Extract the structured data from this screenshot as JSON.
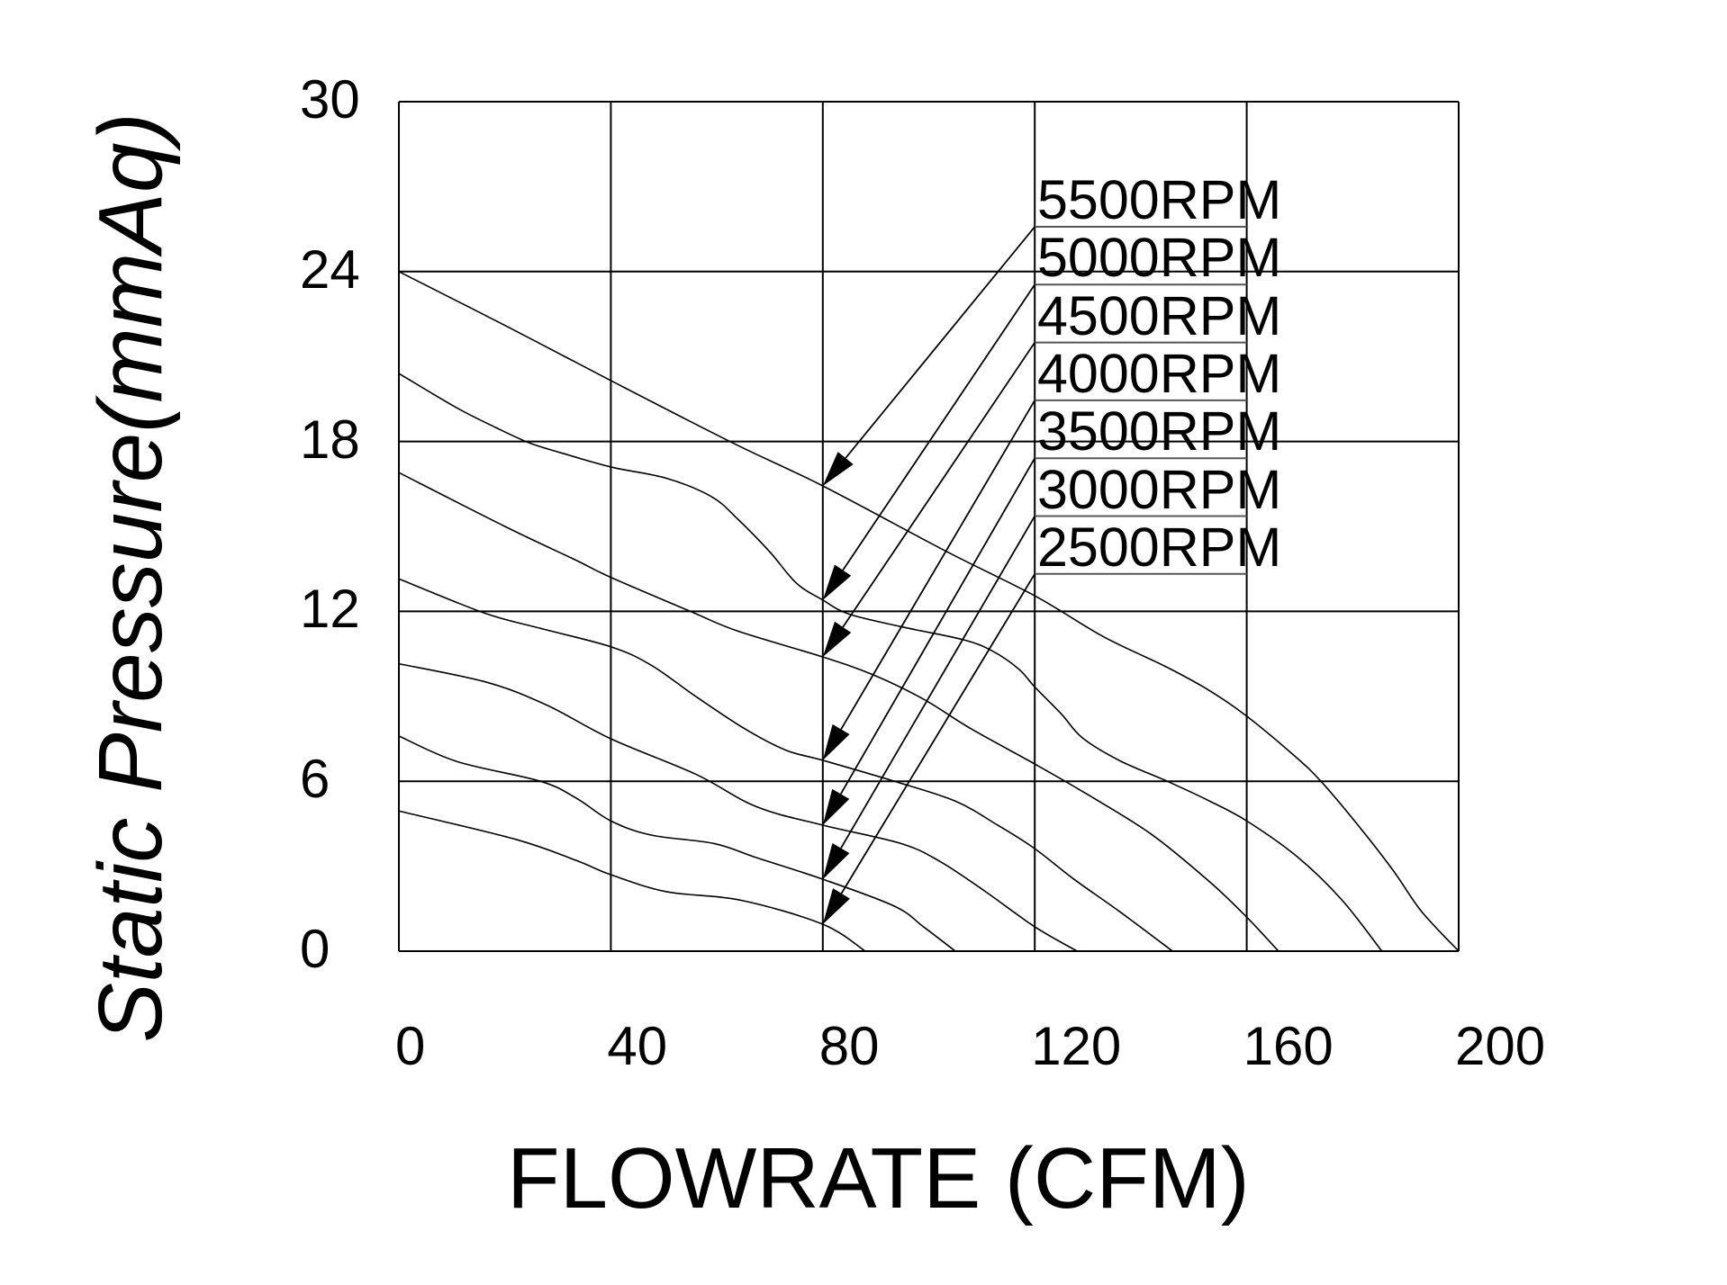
{
  "chart_data": {
    "type": "line",
    "title": "",
    "xlabel": "FLOWRATE (CFM)",
    "ylabel": "Static  Pressure(mmAq)",
    "xlim": [
      0,
      200
    ],
    "ylim": [
      0,
      30
    ],
    "xticks": [
      0,
      40,
      80,
      120,
      160,
      200
    ],
    "yticks": [
      0,
      6,
      12,
      18,
      24,
      30
    ],
    "xtick_labels": [
      "0",
      "40",
      "80",
      "120",
      "160",
      "200"
    ],
    "ytick_labels": [
      "0",
      "6",
      "12",
      "18",
      "24",
      "30"
    ],
    "grid": true,
    "legend_position": "upper-right inside plot, labels with leader arrows pointing to curves at 80 CFM",
    "series": [
      {
        "name": "5500RPM",
        "x": [
          0,
          20,
          40,
          63,
          80,
          103.5,
          120,
          133,
          144.5,
          153,
          160,
          169,
          174,
          181,
          187.6,
          193,
          200
        ],
        "y": [
          24,
          22.1,
          20.15,
          17.95,
          16.43,
          14.1,
          12.55,
          11.1,
          10.07,
          9.2,
          8.3,
          6.9,
          6.0,
          4.45,
          2.86,
          1.4,
          0
        ]
      },
      {
        "name": "5000RPM",
        "x": [
          0,
          10.8,
          18.2,
          24.6,
          30.6,
          40,
          50.5,
          59,
          64,
          70,
          75,
          80,
          85,
          95,
          106.5,
          112,
          117,
          120,
          125,
          129,
          136,
          145,
          153,
          160,
          169.5,
          178,
          185.5
        ],
        "y": [
          20.4,
          19.2,
          18.5,
          17.95,
          17.6,
          17.1,
          16.7,
          16.05,
          15.25,
          14.1,
          13.0,
          12.4,
          11.9,
          11.45,
          11.0,
          10.6,
          9.96,
          9.33,
          8.38,
          7.53,
          6.73,
          6.0,
          5.3,
          4.6,
          3.34,
          1.8,
          0
        ]
      },
      {
        "name": "4500RPM",
        "x": [
          0,
          20,
          33.5,
          40,
          55,
          64,
          80,
          89.5,
          99,
          108,
          120,
          130,
          142,
          153,
          160,
          166
        ],
        "y": [
          16.9,
          15.0,
          13.8,
          13.2,
          12.0,
          11.3,
          10.39,
          9.76,
          8.9,
          7.85,
          6.61,
          5.53,
          4.13,
          2.45,
          1.2,
          0
        ]
      },
      {
        "name": "4000RPM",
        "x": [
          0,
          16,
          26.7,
          40,
          47.6,
          56,
          65.3,
          73,
          80,
          93.5,
          105,
          113,
          120,
          127.4,
          136,
          146
        ],
        "y": [
          13.15,
          11.95,
          11.4,
          10.75,
          10.1,
          9.0,
          7.85,
          7.1,
          6.74,
          6.0,
          5.3,
          4.45,
          3.62,
          2.54,
          1.4,
          0
        ]
      },
      {
        "name": "3500RPM",
        "x": [
          0,
          16.5,
          27.8,
          40,
          56,
          67.5,
          80,
          94.6,
          102,
          110.5,
          120,
          128
        ],
        "y": [
          10.15,
          9.5,
          8.7,
          7.5,
          6.25,
          5.1,
          4.45,
          3.81,
          3.18,
          2.13,
          0.86,
          0
        ]
      },
      {
        "name": "3000RPM",
        "x": [
          0,
          10.9,
          26.7,
          33.5,
          40,
          47.6,
          59.5,
          67.5,
          80,
          93.5,
          99,
          105
        ],
        "y": [
          7.6,
          6.7,
          6.0,
          5.4,
          4.6,
          4.1,
          3.8,
          3.3,
          2.54,
          1.59,
          0.86,
          0
        ]
      },
      {
        "name": "2500RPM",
        "x": [
          0,
          22,
          33.5,
          40,
          50.5,
          64.5,
          80,
          88
        ],
        "y": [
          4.95,
          3.95,
          3.2,
          2.7,
          2.1,
          1.8,
          0.95,
          0
        ]
      }
    ],
    "annotations": [
      {
        "text": "5500RPM",
        "arrow_to": [
          80,
          16.43
        ]
      },
      {
        "text": "5000RPM",
        "arrow_to": [
          80,
          12.4
        ]
      },
      {
        "text": "4500RPM",
        "arrow_to": [
          80,
          10.39
        ]
      },
      {
        "text": "4000RPM",
        "arrow_to": [
          80,
          6.74
        ]
      },
      {
        "text": "3500RPM",
        "arrow_to": [
          80,
          4.45
        ]
      },
      {
        "text": "3000RPM",
        "arrow_to": [
          80,
          2.54
        ]
      },
      {
        "text": "2500RPM",
        "arrow_to": [
          80,
          0.95
        ]
      }
    ]
  },
  "colors": {
    "background": "#ffffff",
    "ink": "#000000"
  }
}
